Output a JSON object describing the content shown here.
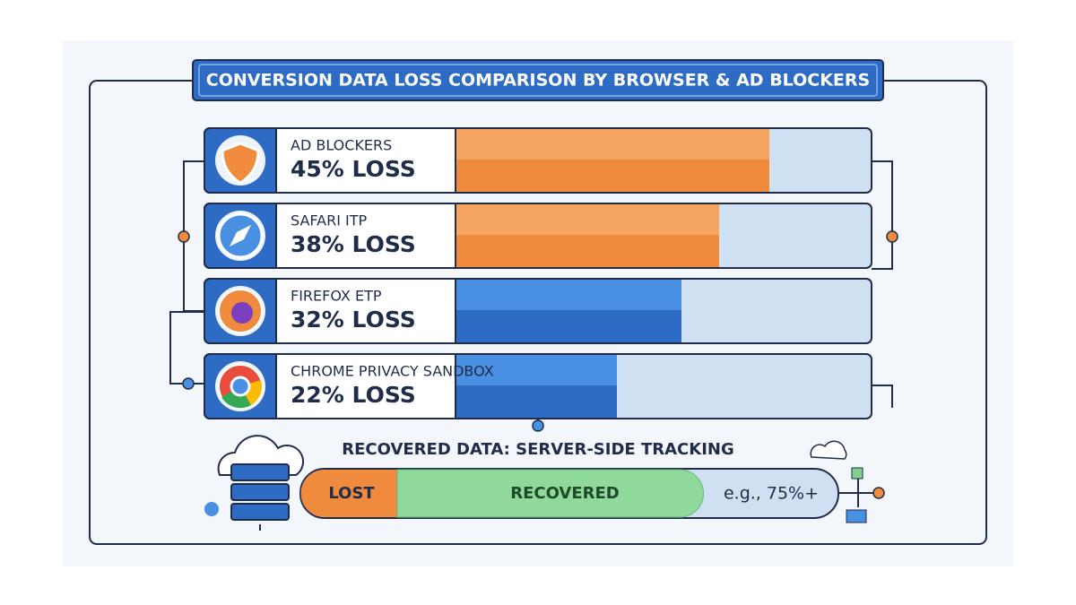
{
  "title": "CONVERSION DATA LOSS COMPARISON BY BROWSER & AD BLOCKERS",
  "rows": [
    {
      "name": "AD BLOCKERS",
      "loss": "45% LOSS"
    },
    {
      "name": "SAFARI ITP",
      "loss": "38% LOSS"
    },
    {
      "name": "FIREFOX ETP",
      "loss": "32% LOSS"
    },
    {
      "name": "CHROME PRIVACY SANDBOX",
      "loss": "22% LOSS"
    }
  ],
  "recovery": {
    "title": "RECOVERED DATA: SERVER-SIDE TRACKING",
    "lost": "LOST",
    "recovered": "RECOVERED",
    "note": "e.g., 75%+"
  }
}
